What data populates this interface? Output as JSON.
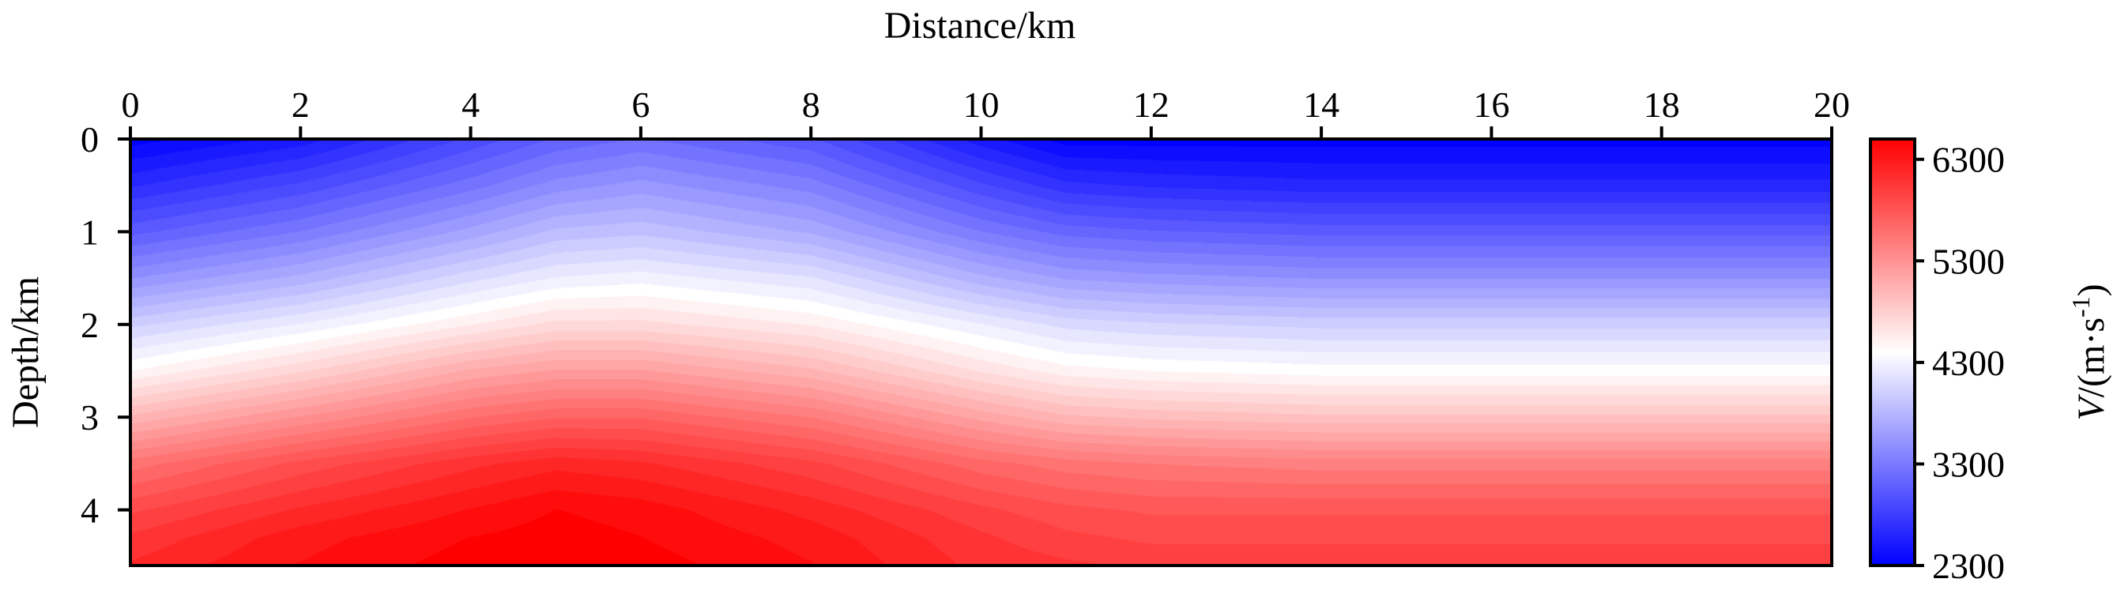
{
  "chart_data": {
    "type": "heatmap",
    "title": "",
    "xlabel": "Distance/km",
    "ylabel": "Depth/km",
    "x_axis": {
      "position": "top",
      "range": [
        0,
        20
      ],
      "ticks": [
        0,
        2,
        4,
        6,
        8,
        10,
        12,
        14,
        16,
        18,
        20
      ],
      "tick_labels": [
        "0",
        "2",
        "4",
        "6",
        "8",
        "10",
        "12",
        "14",
        "16",
        "18",
        "20"
      ]
    },
    "y_axis": {
      "inverted": true,
      "range": [
        0,
        4.6
      ],
      "ticks": [
        0,
        1,
        2,
        3,
        4
      ],
      "tick_labels": [
        "0",
        "1",
        "2",
        "3",
        "4"
      ]
    },
    "colorbar": {
      "label_italic": "V",
      "label_rest": "/(m·s",
      "label_sup": "-1",
      "label_close": ")",
      "range": [
        2300,
        6500
      ],
      "ticks": [
        2300,
        3300,
        4300,
        5300,
        6300
      ],
      "tick_labels": [
        "2300",
        "3300",
        "4300",
        "5300",
        "6300"
      ],
      "colormap": [
        "#0000ff",
        "#ffffff",
        "#ff0000"
      ]
    },
    "field": {
      "description_values": "velocity (m/s) sampled at distance x (km) and depth z (km)",
      "x": [
        0,
        2,
        4,
        5,
        6,
        8,
        10,
        11,
        12,
        14,
        16,
        18,
        20
      ],
      "z": [
        0,
        0.5,
        1,
        1.5,
        2,
        2.5,
        3,
        3.5,
        4,
        4.3,
        4.6
      ],
      "values": [
        [
          2300,
          2500,
          2900,
          3100,
          3200,
          3000,
          2500,
          2300,
          2300,
          2300,
          2300,
          2300,
          2300
        ],
        [
          2650,
          2900,
          3250,
          3450,
          3550,
          3350,
          2900,
          2700,
          2650,
          2600,
          2600,
          2600,
          2600
        ],
        [
          3050,
          3300,
          3650,
          3850,
          3900,
          3700,
          3300,
          3150,
          3100,
          3050,
          3050,
          3050,
          3050
        ],
        [
          3500,
          3750,
          4100,
          4250,
          4300,
          4150,
          3750,
          3600,
          3550,
          3500,
          3500,
          3500,
          3500
        ],
        [
          4000,
          4250,
          4550,
          4700,
          4700,
          4550,
          4250,
          4100,
          4050,
          4000,
          4000,
          4000,
          4000
        ],
        [
          4450,
          4750,
          5100,
          5200,
          5200,
          5000,
          4650,
          4500,
          4450,
          4400,
          4400,
          4400,
          4400
        ],
        [
          5000,
          5300,
          5600,
          5700,
          5700,
          5500,
          5150,
          5000,
          4950,
          4900,
          4900,
          4900,
          4900
        ],
        [
          5550,
          5850,
          6100,
          6200,
          6150,
          5950,
          5650,
          5550,
          5500,
          5450,
          5450,
          5450,
          5450
        ],
        [
          5900,
          6150,
          6350,
          6450,
          6400,
          6200,
          5950,
          5850,
          5800,
          5800,
          5800,
          5800,
          5800
        ],
        [
          6050,
          6300,
          6450,
          6500,
          6450,
          6300,
          6050,
          5950,
          5900,
          5900,
          5900,
          5900,
          5900
        ],
        [
          6150,
          6350,
          6500,
          6500,
          6500,
          6350,
          6100,
          6050,
          6000,
          6000,
          6000,
          6000,
          6000
        ]
      ]
    },
    "grid": false,
    "legend": "colorbar-right"
  }
}
